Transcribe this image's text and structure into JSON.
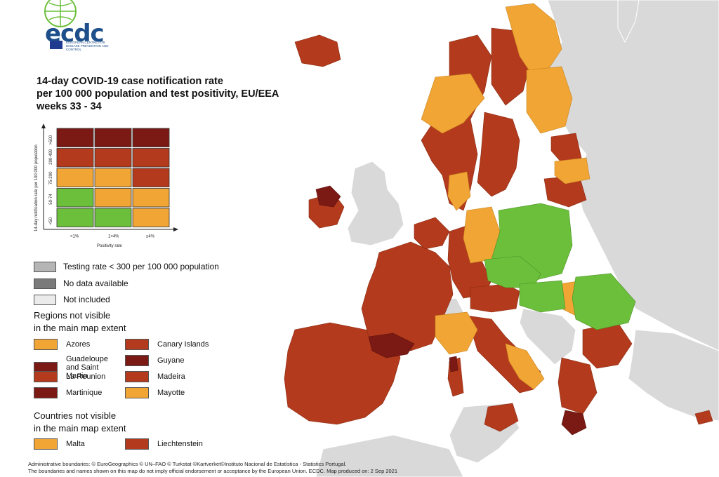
{
  "logo": {
    "text": "ecdc",
    "subtitle": "EUROPEAN CENTRE FOR DISEASE PREVENTION AND CONTROL"
  },
  "title": {
    "line1": "14-day COVID-19 case notification rate",
    "line2": "per 100 000 population and test positivity, EU/EEA",
    "line3": "weeks 33 - 34"
  },
  "matrix": {
    "y_axis_label": "14-day notification rate per 100 000 population",
    "x_axis_label": "Positivity rate",
    "rows": [
      ">500",
      "200-499",
      "75-200",
      "50-74",
      "<50"
    ],
    "cols": [
      "<1%",
      "1<4%",
      "≥4%"
    ],
    "cells": [
      [
        "#7b1a14",
        "#7b1a14",
        "#7b1a14"
      ],
      [
        "#b33a1c",
        "#b33a1c",
        "#b33a1c"
      ],
      [
        "#f0a535",
        "#f0a535",
        "#b33a1c"
      ],
      [
        "#6cbf3b",
        "#f0a535",
        "#f0a535"
      ],
      [
        "#6cbf3b",
        "#6cbf3b",
        "#f0a535"
      ]
    ]
  },
  "legend": {
    "testing_rate": "Testing rate < 300 per 100 000 population",
    "no_data": "No data available",
    "not_included": "Not included"
  },
  "regions": {
    "heading_line1": "Regions not visible",
    "heading_line2": "in the main map extent",
    "items": [
      {
        "label": "Azores",
        "color": "#f0a535"
      },
      {
        "label": "Canary Islands",
        "color": "#b33a1c"
      },
      {
        "label": "Guadeloupe and Saint Martin",
        "color": "#7b1a14"
      },
      {
        "label": "Guyane",
        "color": "#7b1a14"
      },
      {
        "label": "La Reunion",
        "color": "#b33a1c"
      },
      {
        "label": "Madeira",
        "color": "#b33a1c"
      },
      {
        "label": "Martinique",
        "color": "#7b1a14"
      },
      {
        "label": "Mayotte",
        "color": "#f0a535"
      }
    ]
  },
  "countries": {
    "heading_line1": "Countries not visible",
    "heading_line2": "in the main map extent",
    "items": [
      {
        "label": "Malta",
        "color": "#f0a535"
      },
      {
        "label": "Liechtenstein",
        "color": "#b33a1c"
      }
    ]
  },
  "footer": {
    "line1": "Administrative boundaries: © EuroGeographics © UN–FAO © Turkstat ©Kartverket©Instituto Nacional de Estatística - Statistics Portugal.",
    "line2": "The boundaries and names shown on this map do not imply official endorsement or acceptance by the European Union. ECDC. Map produced on: 2 Sep 2021"
  },
  "colors": {
    "dark_red": "#7b1a14",
    "red": "#b33a1c",
    "orange": "#f0a535",
    "green": "#6cbf3b",
    "grey_land": "#d9d9d9",
    "testing_grey": "#b5b5b5",
    "no_data_grey": "#7a7a7a"
  }
}
